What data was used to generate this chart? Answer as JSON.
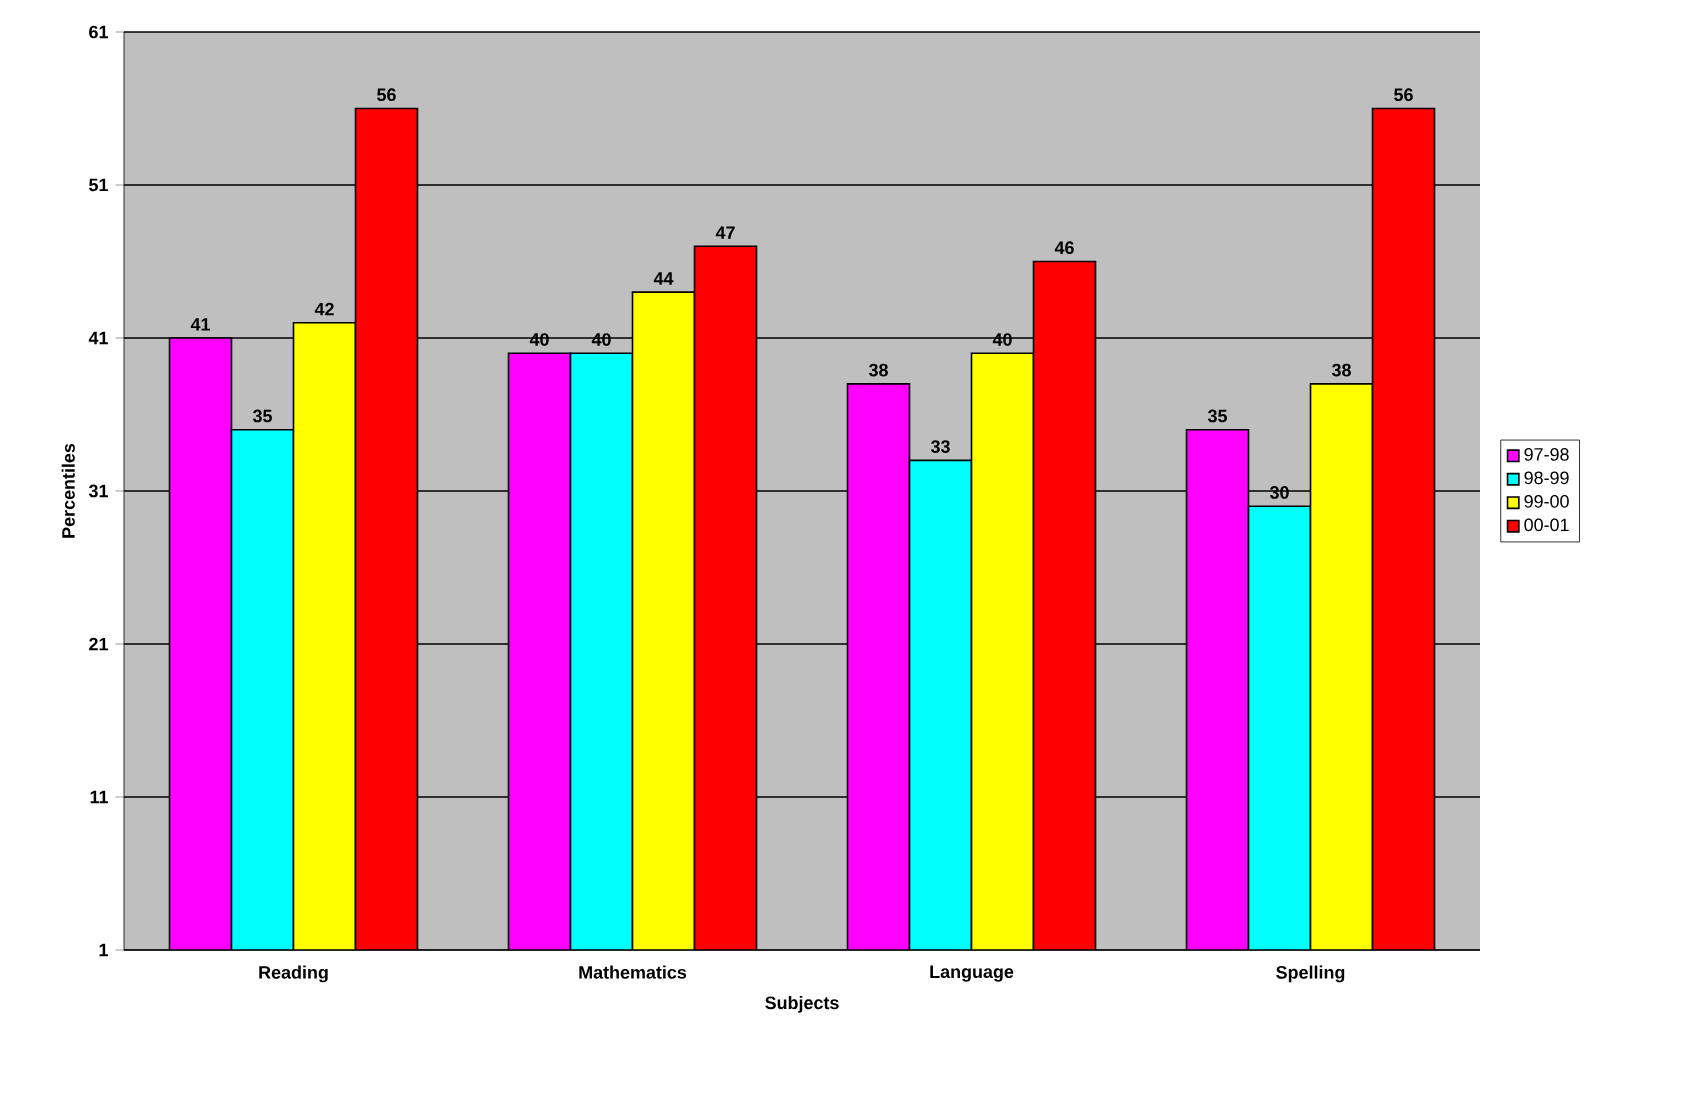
{
  "chart_data": {
    "type": "bar",
    "xlabel": "Subjects",
    "ylabel": "Percentiles",
    "categories": [
      "Reading",
      "Mathematics",
      "Language",
      "Spelling"
    ],
    "series": [
      {
        "name": "97-98",
        "color": "#ff00ff",
        "values": [
          41,
          40,
          38,
          35
        ]
      },
      {
        "name": "98-99",
        "color": "#00ffff",
        "values": [
          35,
          40,
          33,
          30
        ]
      },
      {
        "name": "99-00",
        "color": "#ffff00",
        "values": [
          42,
          44,
          40,
          38
        ]
      },
      {
        "name": "00-01",
        "color": "#ff0000",
        "values": [
          56,
          47,
          46,
          56
        ]
      }
    ],
    "ylim": [
      1,
      61
    ],
    "yticks": [
      1,
      11,
      21,
      31,
      41,
      51,
      61
    ],
    "grid": "y",
    "legend": "right",
    "data_labels": true
  }
}
